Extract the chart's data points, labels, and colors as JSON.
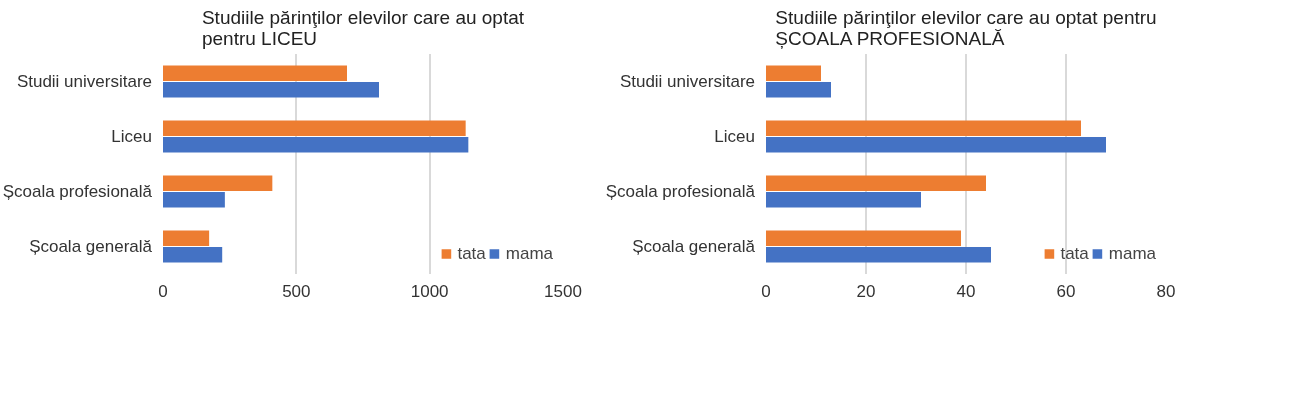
{
  "chart_data": [
    {
      "type": "bar",
      "orientation": "horizontal",
      "title": "Studiile părinţilor elevilor care au optat\npentru LICEU",
      "categories": [
        "Studii universitare",
        "Liceu",
        "Școala profesională",
        "Școala generală"
      ],
      "series": [
        {
          "name": "tata",
          "color": "#ed7d31",
          "values": [
            690,
            1135,
            410,
            173
          ]
        },
        {
          "name": "mama",
          "color": "#4472c4",
          "values": [
            810,
            1145,
            232,
            222
          ]
        }
      ],
      "xlim": [
        0,
        1500
      ],
      "xticks": [
        0,
        500,
        1000,
        1500
      ],
      "grid": "x",
      "legend": "bottom right"
    },
    {
      "type": "bar",
      "orientation": "horizontal",
      "title": "Studiile părinţilor elevilor care au optat pentru\nȘCOALA PROFESIONALĂ",
      "categories": [
        "Studii universitare",
        "Liceu",
        "Școala profesională",
        "Școala generală"
      ],
      "series": [
        {
          "name": "tata",
          "color": "#ed7d31",
          "values": [
            11,
            63,
            44,
            39
          ]
        },
        {
          "name": "mama",
          "color": "#4472c4",
          "values": [
            13,
            68,
            31,
            45
          ]
        }
      ],
      "xlim": [
        0,
        80
      ],
      "xticks": [
        0,
        20,
        40,
        60,
        80
      ],
      "grid": "x",
      "legend": "bottom right"
    }
  ]
}
